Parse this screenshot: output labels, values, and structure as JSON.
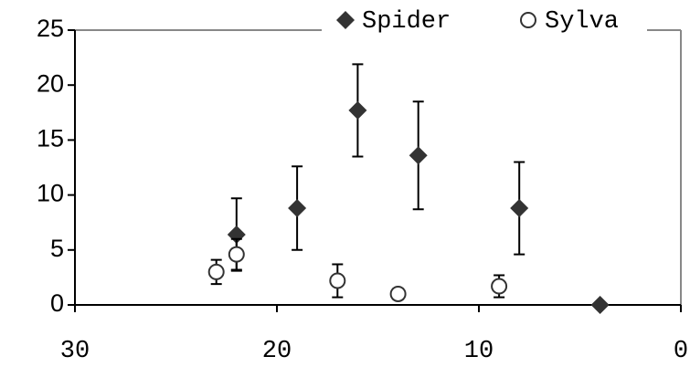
{
  "chart_data": {
    "type": "scatter",
    "xlim": [
      30,
      0
    ],
    "xticks": [
      30,
      20,
      10,
      0
    ],
    "ylim": [
      0,
      25
    ],
    "yticks": [
      0,
      5,
      10,
      15,
      20,
      25
    ],
    "legend": "top-right",
    "series": [
      {
        "name": "Spider",
        "color": "#333333",
        "marker": "diamond",
        "x": [
          22,
          19,
          16,
          13,
          8,
          4
        ],
        "values": [
          6.4,
          8.8,
          17.7,
          13.6,
          8.8,
          0
        ],
        "errors": [
          3.3,
          3.8,
          4.2,
          4.9,
          4.2,
          null
        ]
      },
      {
        "name": "Sylva",
        "color": "#333333",
        "marker": "circle",
        "x": [
          23,
          22,
          17,
          14,
          9
        ],
        "values": [
          3.0,
          4.6,
          2.2,
          1.0,
          1.7
        ],
        "errors": [
          1.1,
          1.4,
          1.5,
          0.5,
          1.0
        ]
      }
    ]
  }
}
